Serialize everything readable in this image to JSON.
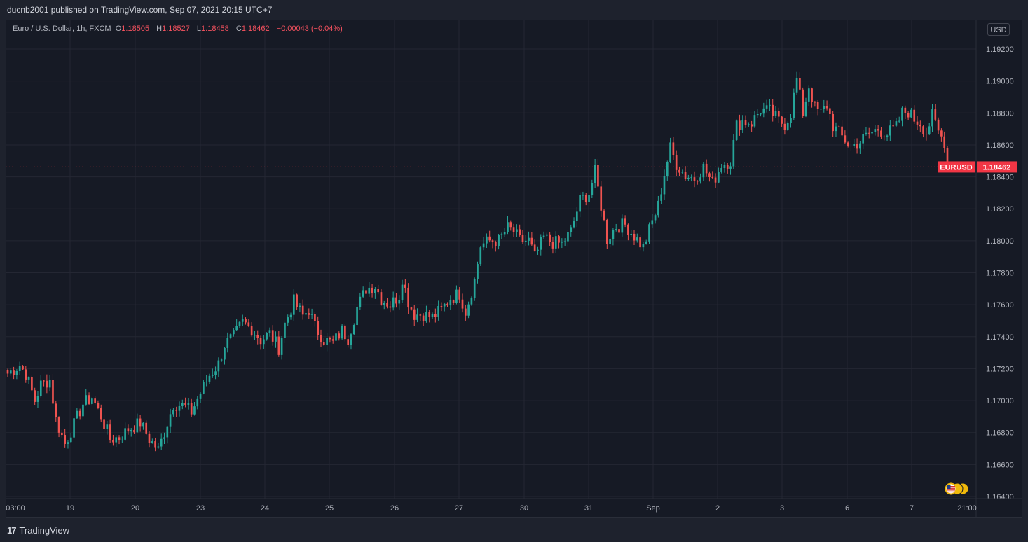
{
  "header": {
    "publisher_line": "ducnb2001 published on TradingView.com, Sep 07, 2021 20:15 UTC+7"
  },
  "legend": {
    "symbol_desc": "Euro / U.S. Dollar, 1h, FXCM",
    "open_label": "O",
    "open": "1.18505",
    "high_label": "H",
    "high": "1.18527",
    "low_label": "L",
    "low": "1.18458",
    "close_label": "C",
    "close": "1.18462",
    "change": "−0.00043 (−0.04%)"
  },
  "currency_button": "USD",
  "footer": {
    "brand": "TradingView",
    "logo": "17"
  },
  "colors": {
    "up": "#26a69a",
    "down": "#ef5350",
    "background": "#161a25",
    "grid": "#242733",
    "axis_text": "#b2b5be",
    "price_tag": "#f23645"
  },
  "chart_data": {
    "type": "candlestick",
    "symbol": "EURUSD",
    "interval": "1h",
    "last_price": 1.18462,
    "last_price_label": "1.18462",
    "symbol_tag": "EURUSD",
    "ylim": [
      1.164,
      1.1928
    ],
    "y_ticks": [
      "1.16400",
      "1.16600",
      "1.16800",
      "1.17000",
      "1.17200",
      "1.17400",
      "1.17600",
      "1.17800",
      "1.18000",
      "1.18200",
      "1.18400",
      "1.18600",
      "1.18800",
      "1.19000",
      "1.19200"
    ],
    "x_ticks": [
      "03:00",
      "19",
      "20",
      "23",
      "24",
      "25",
      "26",
      "27",
      "30",
      "31",
      "Sep",
      "2",
      "3",
      "6",
      "7",
      "21:00"
    ],
    "anchors": [
      [
        0,
        1.1717
      ],
      [
        4,
        1.1722
      ],
      [
        6,
        1.1717
      ],
      [
        9,
        1.17
      ],
      [
        11,
        1.171
      ],
      [
        14,
        1.1713
      ],
      [
        16,
        1.1688
      ],
      [
        19,
        1.1673
      ],
      [
        22,
        1.1685
      ],
      [
        25,
        1.1698
      ],
      [
        28,
        1.1702
      ],
      [
        31,
        1.169
      ],
      [
        34,
        1.1676
      ],
      [
        37,
        1.1677
      ],
      [
        40,
        1.1682
      ],
      [
        44,
        1.1686
      ],
      [
        47,
        1.1676
      ],
      [
        50,
        1.1669
      ],
      [
        53,
        1.1686
      ],
      [
        55,
        1.1698
      ],
      [
        58,
        1.1697
      ],
      [
        61,
        1.1693
      ],
      [
        64,
        1.1705
      ],
      [
        67,
        1.1716
      ],
      [
        70,
        1.1723
      ],
      [
        72,
        1.1735
      ],
      [
        75,
        1.174
      ],
      [
        78,
        1.1749
      ],
      [
        81,
        1.1745
      ],
      [
        84,
        1.1738
      ],
      [
        87,
        1.1742
      ],
      [
        90,
        1.1733
      ],
      [
        92,
        1.1748
      ],
      [
        95,
        1.1762
      ],
      [
        98,
        1.1753
      ],
      [
        100,
        1.1757
      ],
      [
        102,
        1.1746
      ],
      [
        105,
        1.1738
      ],
      [
        108,
        1.1736
      ],
      [
        111,
        1.1744
      ],
      [
        113,
        1.1739
      ],
      [
        116,
        1.1758
      ],
      [
        119,
        1.177
      ],
      [
        122,
        1.1772
      ],
      [
        124,
        1.1764
      ],
      [
        127,
        1.176
      ],
      [
        130,
        1.1766
      ],
      [
        131,
        1.1777
      ],
      [
        133,
        1.1762
      ],
      [
        135,
        1.1754
      ],
      [
        138,
        1.1754
      ],
      [
        141,
        1.1752
      ],
      [
        144,
        1.1757
      ],
      [
        147,
        1.1764
      ],
      [
        150,
        1.1767
      ],
      [
        152,
        1.1756
      ],
      [
        153,
        1.1762
      ],
      [
        155,
        1.1775
      ],
      [
        157,
        1.1797
      ],
      [
        160,
        1.18
      ],
      [
        163,
        1.18
      ],
      [
        166,
        1.1808
      ],
      [
        168,
        1.1806
      ],
      [
        170,
        1.18
      ],
      [
        173,
        1.18
      ],
      [
        175,
        1.179
      ],
      [
        178,
        1.1802
      ],
      [
        181,
        1.1799
      ],
      [
        184,
        1.1798
      ],
      [
        187,
        1.1806
      ],
      [
        190,
        1.1825
      ],
      [
        193,
        1.183
      ],
      [
        195,
        1.1843
      ],
      [
        197,
        1.1822
      ],
      [
        199,
        1.1801
      ],
      [
        202,
        1.1809
      ],
      [
        205,
        1.181
      ],
      [
        208,
        1.1803
      ],
      [
        211,
        1.1796
      ],
      [
        214,
        1.1812
      ],
      [
        216,
        1.1822
      ],
      [
        218,
        1.1842
      ],
      [
        220,
        1.1858
      ],
      [
        222,
        1.1848
      ],
      [
        225,
        1.1841
      ],
      [
        228,
        1.1839
      ],
      [
        231,
        1.1846
      ],
      [
        234,
        1.1836
      ],
      [
        237,
        1.1848
      ],
      [
        240,
        1.185
      ],
      [
        242,
        1.1872
      ],
      [
        244,
        1.1875
      ],
      [
        247,
        1.1874
      ],
      [
        250,
        1.1882
      ],
      [
        253,
        1.1881
      ],
      [
        256,
        1.1875
      ],
      [
        258,
        1.1873
      ],
      [
        260,
        1.188
      ],
      [
        262,
        1.1901
      ],
      [
        264,
        1.188
      ],
      [
        266,
        1.1897
      ],
      [
        268,
        1.1883
      ],
      [
        270,
        1.188
      ],
      [
        272,
        1.1885
      ],
      [
        274,
        1.1872
      ],
      [
        277,
        1.1865
      ],
      [
        280,
        1.1859
      ],
      [
        283,
        1.1862
      ],
      [
        286,
        1.1867
      ],
      [
        289,
        1.187
      ],
      [
        292,
        1.1867
      ],
      [
        295,
        1.1871
      ],
      [
        297,
        1.188
      ],
      [
        299,
        1.1881
      ],
      [
        301,
        1.1876
      ],
      [
        303,
        1.1874
      ],
      [
        305,
        1.1868
      ],
      [
        307,
        1.1878
      ],
      [
        309,
        1.1868
      ],
      [
        311,
        1.1862
      ],
      [
        312,
        1.1846
      ]
    ]
  }
}
